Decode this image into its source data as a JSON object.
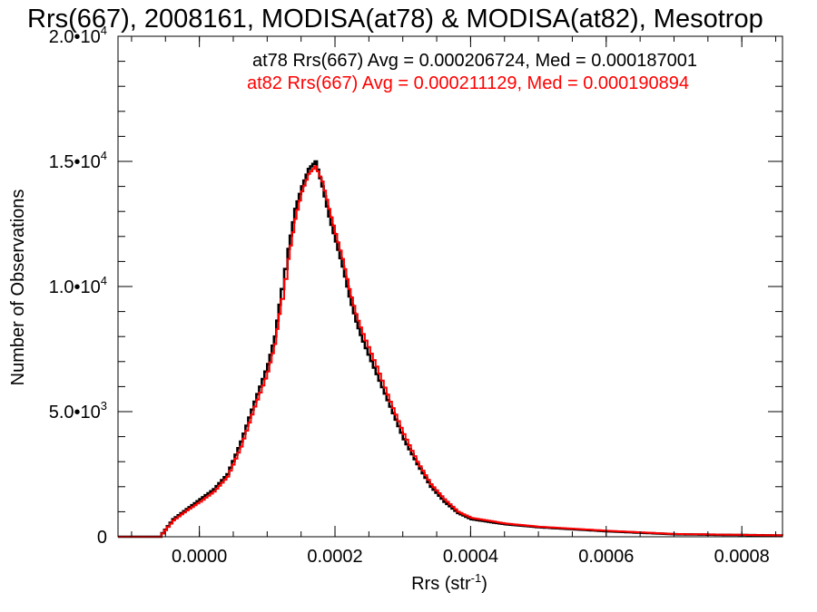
{
  "chart_data": {
    "type": "line",
    "title": "Rrs(667), 2008161, MODISA(at78) & MODISA(at82), Mesotrop",
    "xlabel": {
      "base": "Rrs (str",
      "sup": "-1",
      "end": ")"
    },
    "ylabel": "Number of Observations",
    "xlim": [
      -0.00012,
      0.00086
    ],
    "ylim": [
      0,
      20000
    ],
    "x_ticks": [
      {
        "value": 0.0,
        "label": "0.0000"
      },
      {
        "value": 0.0002,
        "label": "0.0002"
      },
      {
        "value": 0.0004,
        "label": "0.0004"
      },
      {
        "value": 0.0006,
        "label": "0.0006"
      },
      {
        "value": 0.0008,
        "label": "0.0008"
      }
    ],
    "y_ticks": [
      {
        "value": 0,
        "mant": "0",
        "exp": ""
      },
      {
        "value": 5000,
        "mant": "5.0•10",
        "exp": "3"
      },
      {
        "value": 10000,
        "mant": "1.0•10",
        "exp": "4"
      },
      {
        "value": 15000,
        "mant": "1.5•10",
        "exp": "4"
      },
      {
        "value": 20000,
        "mant": "2.0•10",
        "exp": "4"
      }
    ],
    "grid": false,
    "legend_position": "top-right",
    "series": [
      {
        "name": "at78",
        "color": "#000000",
        "annotation": "at78 Rrs(667) Avg = 0.000206724, Med = 0.000187001",
        "x": [
          -0.00012,
          -6e-05,
          -4e-05,
          -2e-05,
          0.0,
          2e-05,
          4e-05,
          6e-05,
          8e-05,
          0.0001,
          0.00011,
          0.00012,
          0.00013,
          0.00014,
          0.00015,
          0.00016,
          0.00017,
          0.00018,
          0.00019,
          0.0002,
          0.00021,
          0.00022,
          0.00023,
          0.00024,
          0.00026,
          0.00028,
          0.0003,
          0.00032,
          0.00034,
          0.00036,
          0.00038,
          0.0004,
          0.00045,
          0.0005,
          0.0006,
          0.0007,
          0.00086
        ],
        "y": [
          0,
          0,
          700,
          1100,
          1500,
          1900,
          2500,
          3800,
          5400,
          6900,
          8000,
          9900,
          11500,
          13100,
          14000,
          14700,
          15000,
          14000,
          12800,
          11800,
          10800,
          9600,
          8600,
          7800,
          6500,
          5200,
          3900,
          2900,
          2000,
          1400,
          950,
          700,
          500,
          380,
          220,
          100,
          50
        ]
      },
      {
        "name": "at82",
        "color": "#ff0000",
        "annotation": "at82 Rrs(667) Avg = 0.000211129, Med = 0.000190894",
        "x": [
          -0.00012,
          -6e-05,
          -4e-05,
          -2e-05,
          0.0,
          2e-05,
          4e-05,
          6e-05,
          8e-05,
          0.0001,
          0.00011,
          0.00012,
          0.00013,
          0.00014,
          0.00015,
          0.00016,
          0.00017,
          0.00018,
          0.00019,
          0.0002,
          0.00021,
          0.00022,
          0.00023,
          0.00024,
          0.00026,
          0.00028,
          0.0003,
          0.00032,
          0.00034,
          0.00036,
          0.00038,
          0.0004,
          0.00045,
          0.0005,
          0.0006,
          0.0007,
          0.00086
        ],
        "y": [
          0,
          0,
          650,
          1050,
          1400,
          1800,
          2400,
          3600,
          5200,
          6600,
          7700,
          9500,
          11100,
          12700,
          13800,
          14500,
          14800,
          14200,
          13100,
          12100,
          11100,
          9900,
          8900,
          8100,
          6800,
          5400,
          4100,
          3000,
          2100,
          1500,
          1000,
          750,
          530,
          400,
          240,
          110,
          55
        ]
      }
    ]
  }
}
